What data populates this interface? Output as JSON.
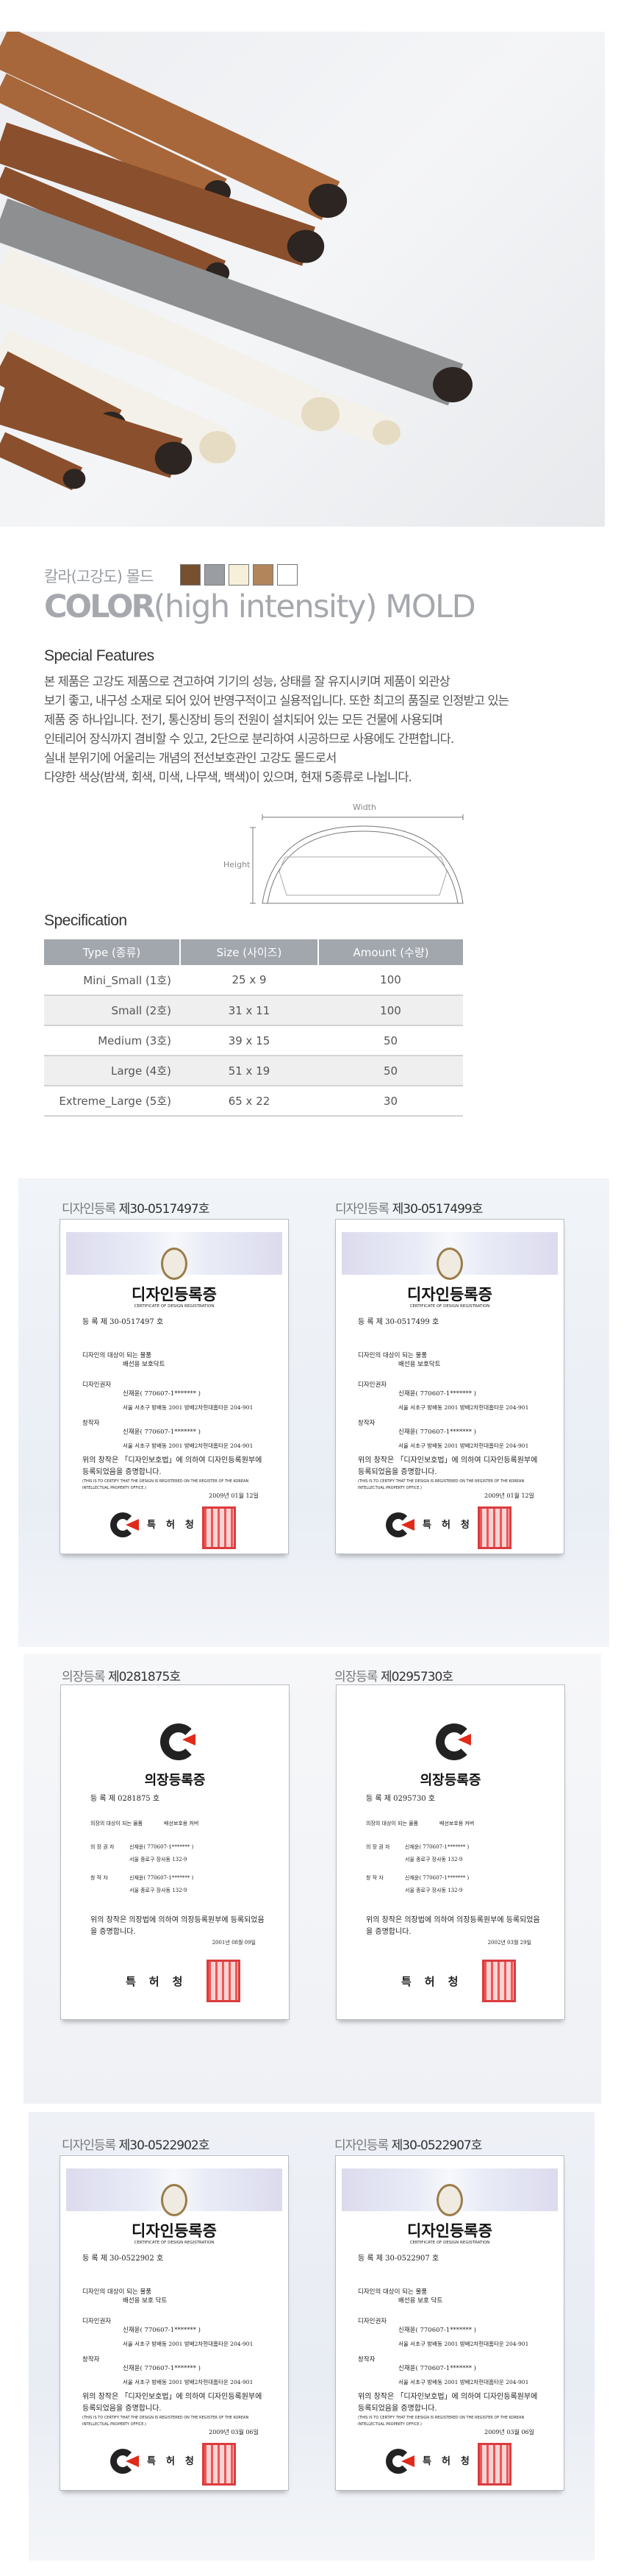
{
  "hero": {
    "alt_colors": {
      "brown": "#8a4f2c",
      "wood": "#a8673a",
      "gray": "#8e8f90",
      "white": "#f3f1ea"
    }
  },
  "color_title": {
    "korean": "칼라(고강도) 몰드",
    "english_bold": "COLOR",
    "english_rest": "(high intensity) MOLD",
    "swatches": [
      "#76502f",
      "#9a9ea3",
      "#f6f0db",
      "#b3855a",
      "#ffffff"
    ]
  },
  "features": {
    "heading": "Special Features",
    "lines": [
      "본 제품은 고강도 제품으로 견고하여 기기의 성능, 상태를 잘 유지시키며 제품이 외관상",
      "보기 좋고, 내구성 소재로 되어 있어 반영구적이고 실용적입니다. 또한 최고의 품질로 인정받고 있는",
      "제품 중 하나입니다. 전기, 통신장비 등의 전원이 설치되어 있는 모든 건물에 사용되며",
      "인테리어 장식까지 겸비할 수 있고, 2단으로 분리하여 시공하므로 사용에도 간편합니다.",
      "실내 분위기에 어울리는 개념의 전선보호관인 고강도 몰드로서",
      "다양한 색상(밤색, 회색, 미색, 나무색, 백색)이 있으며, 현재 5종류로 나뉩니다."
    ]
  },
  "diagram": {
    "width_label": "Width",
    "height_label": "Height"
  },
  "spec": {
    "heading": "Specification",
    "headers": [
      "Type (종류)",
      "Size (사이즈)",
      "Amount (수량)"
    ],
    "rows": [
      [
        "Mini_Small (1호)",
        "25 x 9",
        "100"
      ],
      [
        "Small (2호)",
        "31 x 11",
        "100"
      ],
      [
        "Medium (3호)",
        "39 x 15",
        "50"
      ],
      [
        "Large (4호)",
        "51 x 19",
        "50"
      ],
      [
        "Extreme_Large (5호)",
        "65 x 22",
        "30"
      ]
    ]
  },
  "certificates": [
    {
      "label_prefix": "디자인등록",
      "label_no": "제30-0517497호",
      "kind": "design",
      "title": "디자인등록증",
      "subtitle": "CERTIFICATE OF DESIGN REGISTRATION",
      "reg_line": "등   록   제 30-0517497 호",
      "article_label": "디자인의 대상이 되는 물품",
      "article": "배선용 보호닥트",
      "owner_label": "디자인권자",
      "creator_label": "창작자",
      "person": "신재윤( 770607-1******* )",
      "address": "서울 서초구 방배동 2001 방배2차현대홈타운 204-901",
      "statement": "위의 창작은 「디자인보호법」에 의하여 디자인등록원부에 등록되었음을 증명합니다.",
      "statement_en": "(THIS IS TO CERTIFY THAT THE DESIGN IS REGISTERED ON THE REGISTER OF THE KOREAN INTELLECTUAL PROPERTY OFFICE.)",
      "date": "2009년 01월 12일",
      "issuer": "특허청"
    },
    {
      "label_prefix": "디자인등록",
      "label_no": "제30-0517499호",
      "kind": "design",
      "title": "디자인등록증",
      "subtitle": "CERTIFICATE OF DESIGN REGISTRATION",
      "reg_line": "등   록   제 30-0517499 호",
      "article_label": "디자인의 대상이 되는 물품",
      "article": "배선용 보호닥트",
      "owner_label": "디자인권자",
      "creator_label": "창작자",
      "person": "신재윤( 770607-1******* )",
      "address": "서울 서초구 방배동 2001 방배2차현대홈타운 204-901",
      "statement": "위의 창작은 「디자인보호법」에 의하여 디자인등록원부에 등록되었음을 증명합니다.",
      "statement_en": "(THIS IS TO CERTIFY THAT THE DESIGN IS REGISTERED ON THE REGISTER OF THE KOREAN INTELLECTUAL PROPERTY OFFICE.)",
      "date": "2009년 01월 12일",
      "issuer": "특허청"
    },
    {
      "label_prefix": "의장등록",
      "label_no": "제0281875호",
      "kind": "uijang",
      "title": "의장등록증",
      "subtitle": "",
      "reg_line": "등   록   제 0281875 호",
      "article_label": "의장의 대상이 되는 물품",
      "article": "배선보호용 커버",
      "owner_label": "의 장 권 자",
      "creator_label": "창 작 자",
      "person": "신재윤( 770607-1******* )",
      "address": "서울 종로구 장사동 132-9",
      "statement": "위의 창작은 의장법에 의하여 의장등록원부에 등록되었음을 증명합니다.",
      "statement_en": "",
      "date": "2001년 08월 09일",
      "issuer": "특허청"
    },
    {
      "label_prefix": "의장등록",
      "label_no": "제0295730호",
      "kind": "uijang",
      "title": "의장등록증",
      "subtitle": "",
      "reg_line": "등   록   제 0295730 호",
      "article_label": "의장의 대상이 되는 물품",
      "article": "배선보호용 커버",
      "owner_label": "의 장 권 자",
      "creator_label": "창 작 자",
      "person": "신재윤( 770607-1******* )",
      "address": "서울 종로구 장사동 132-9",
      "statement": "위의 창작은 의장법에 의하여 의장등록원부에 등록되었음을 증명합니다.",
      "statement_en": "",
      "date": "2002년 03월 29일",
      "issuer": "특허청"
    },
    {
      "label_prefix": "디자인등록",
      "label_no": "제30-0522902호",
      "kind": "design",
      "title": "디자인등록증",
      "subtitle": "CERTIFICATE OF DESIGN REGISTRATION",
      "reg_line": "등   록   제 30-0522902 호",
      "article_label": "디자인의 대상이 되는 물품",
      "article": "배선용 보호 닥트",
      "owner_label": "디자인권자",
      "creator_label": "창작자",
      "person": "신재윤( 770607-1******* )",
      "address": "서울 서초구 방배동 2001 방배2차현대홈타운 204-901",
      "statement": "위의 창작은 「디자인보호법」에 의하여 디자인등록원부에 등록되었음을 증명합니다.",
      "statement_en": "(THIS IS TO CERTIFY THAT THE DESIGN IS REGISTERED ON THE REGISTER OF THE KOREAN INTELLECTUAL PROPERTY OFFICE.)",
      "date": "2009년 03월 06일",
      "issuer": "특허청"
    },
    {
      "label_prefix": "디자인등록",
      "label_no": "제30-0522907호",
      "kind": "design",
      "title": "디자인등록증",
      "subtitle": "CERTIFICATE OF DESIGN REGISTRATION",
      "reg_line": "등   록   제 30-0522907 호",
      "article_label": "디자인의 대상이 되는 물품",
      "article": "배선용 보호 닥트",
      "owner_label": "디자인권자",
      "creator_label": "창작자",
      "person": "신재윤( 770607-1******* )",
      "address": "서울 서초구 방배동 2001 방배2차현대홈타운 204-901",
      "statement": "위의 창작은 「디자인보호법」에 의하여 디자인등록원부에 등록되었음을 증명합니다.",
      "statement_en": "(THIS IS TO CERTIFY THAT THE DESIGN IS REGISTERED ON THE REGISTER OF THE KOREAN INTELLECTUAL PROPERTY OFFICE.)",
      "date": "2009년 03월 06일",
      "issuer": "특허청"
    }
  ]
}
